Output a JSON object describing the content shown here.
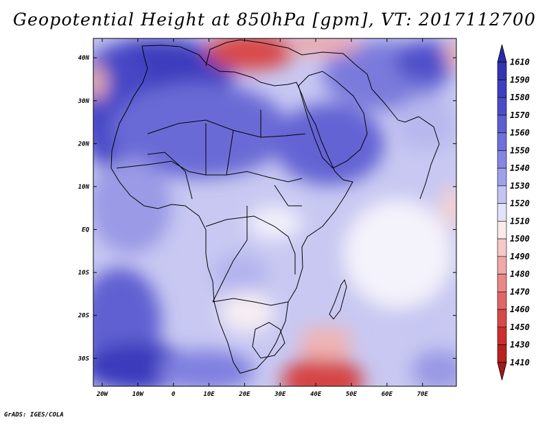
{
  "map": {
    "title": "Geopotential Height at 850hPa [gpm], VT: 2017112700",
    "variable": "Geopotential Height",
    "level": "850hPa",
    "units": "gpm",
    "valid_time": "2017112700",
    "lon_labels": [
      "20W",
      "10W",
      "0",
      "10E",
      "20E",
      "30E",
      "40E",
      "50E",
      "60E",
      "70E"
    ],
    "lat_labels": [
      "40N",
      "30N",
      "20N",
      "10N",
      "EQ",
      "10S",
      "20S",
      "30S"
    ],
    "lon_values": [
      -20,
      -10,
      0,
      10,
      20,
      30,
      40,
      50,
      60,
      70
    ],
    "lat_values": [
      40,
      30,
      20,
      10,
      0,
      -10,
      -20,
      -30
    ],
    "extent": {
      "lon_min": -22.5,
      "lon_max": 79.5,
      "lat_min": -36.5,
      "lat_max": 44.5
    }
  },
  "colorbar": {
    "labels": [
      "1610",
      "1590",
      "1580",
      "1570",
      "1560",
      "1550",
      "1540",
      "1530",
      "1520",
      "1510",
      "1500",
      "1490",
      "1480",
      "1470",
      "1460",
      "1450",
      "1430",
      "1410"
    ],
    "colors": [
      "#2b2ba6",
      "#3434b4",
      "#3e3ec0",
      "#4c4cc8",
      "#5e5ed2",
      "#7070da",
      "#8686e2",
      "#a0a0ea",
      "#c4c4f2",
      "#e2e2f8",
      "#fbeaea",
      "#f6c8c8",
      "#f0a8a8",
      "#ea8888",
      "#e26666",
      "#d84848",
      "#cc2e2e",
      "#b82020",
      "#a01818"
    ]
  },
  "credit": "GrADS: IGES/COLA"
}
